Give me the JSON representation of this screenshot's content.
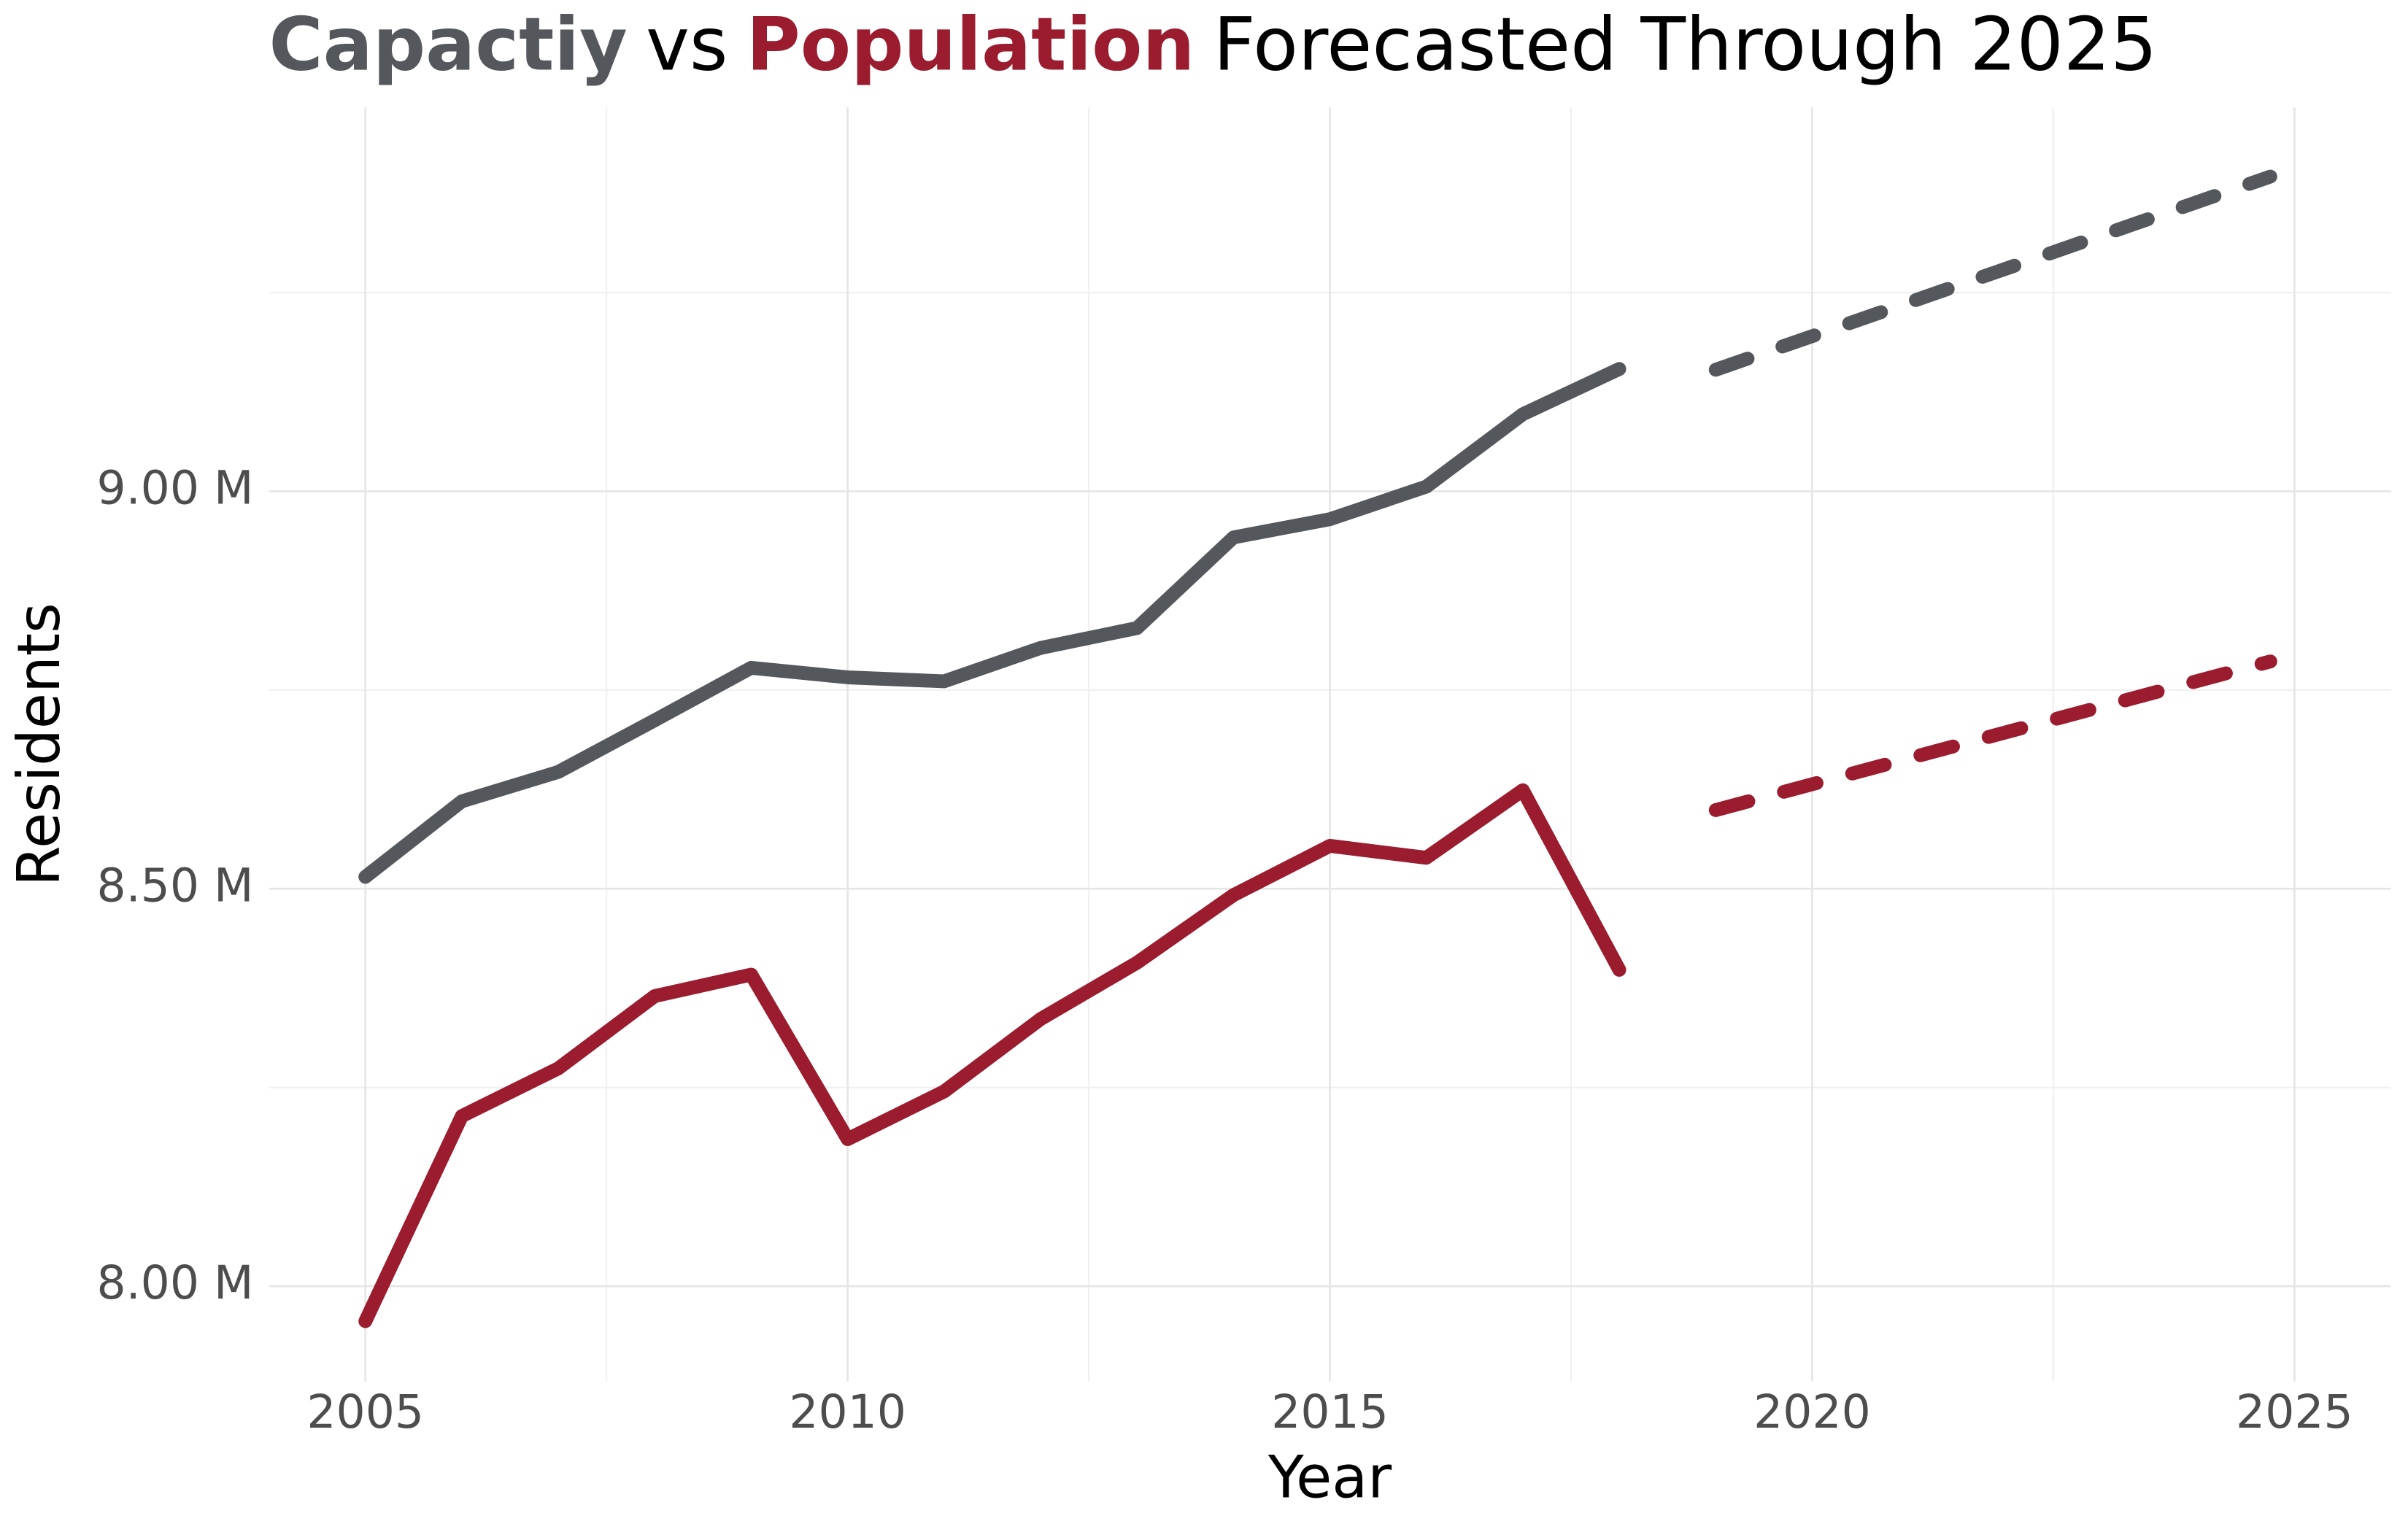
{
  "chart_data": {
    "type": "line",
    "title": [
      {
        "text": "Capactiy",
        "color": "#54575c",
        "bold": true
      },
      {
        "text": "vs",
        "color": "#000000",
        "bold": false
      },
      {
        "text": "Population",
        "color": "#9b1c2e",
        "bold": true
      },
      {
        "text": "Forecasted Through 2025",
        "color": "#000000",
        "bold": false
      }
    ],
    "x_label": "Year",
    "y_label": "Residents",
    "xlim": [
      2004,
      2026
    ],
    "ylim": [
      7880000,
      9483000
    ],
    "xticks": [
      2005,
      2010,
      2015,
      2020,
      2025
    ],
    "yticks": [
      {
        "value": 8000000,
        "label": "8.00 M"
      },
      {
        "value": 8500000,
        "label": "8.50 M"
      },
      {
        "value": 9000000,
        "label": "9.00 M"
      }
    ],
    "x_minor_ticks": [
      2007.5,
      2012.5,
      2017.5,
      2022.5
    ],
    "y_minor_ticks": [
      8250000,
      8750000,
      9250000
    ],
    "grid": true,
    "series": [
      {
        "color": "#54575c",
        "style": "solid",
        "x": [
          2005,
          2006,
          2007,
          2008,
          2009,
          2010,
          2011,
          2012,
          2013,
          2014,
          2015,
          2016,
          2017,
          2018
        ],
        "values": [
          8515000,
          8610000,
          8647000,
          8712000,
          8778000,
          8766000,
          8761000,
          8803000,
          8828000,
          8942000,
          8965000,
          9006000,
          9097000,
          9154000
        ]
      },
      {
        "color": "#9b1c2e",
        "style": "solid",
        "x": [
          2005,
          2006,
          2007,
          2008,
          2009,
          2010,
          2011,
          2012,
          2013,
          2014,
          2015,
          2016,
          2017,
          2018
        ],
        "values": [
          7956000,
          8214000,
          8274000,
          8365000,
          8392000,
          8185000,
          8245000,
          8336000,
          8407000,
          8492000,
          8554000,
          8539000,
          8624000,
          8398000
        ]
      },
      {
        "color": "#54575c",
        "style": "dashed",
        "x": [
          2019,
          2024.75
        ],
        "values": [
          9153000,
          9396000
        ]
      },
      {
        "color": "#9b1c2e",
        "style": "dashed",
        "x": [
          2019,
          2024.75
        ],
        "values": [
          8599000,
          8786000
        ]
      }
    ]
  }
}
